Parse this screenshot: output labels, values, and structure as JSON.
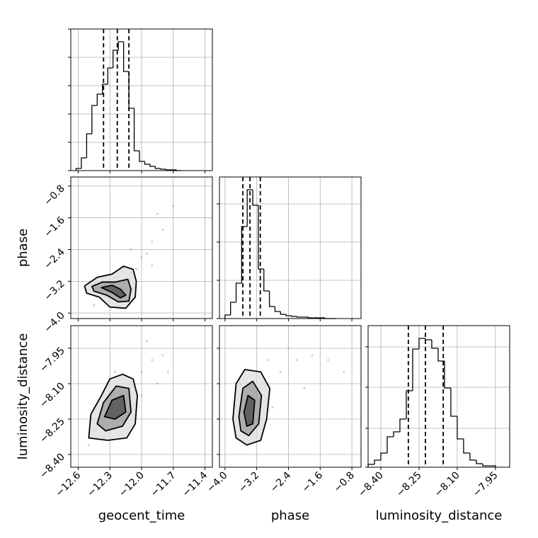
{
  "chart_data": [
    {
      "type": "histogram",
      "color": "#000000",
      "grid": true,
      "bins": [
        -12.62,
        -12.57,
        -12.52,
        -12.47,
        -12.42,
        -12.37,
        -12.32,
        -12.27,
        -12.22,
        -12.17,
        -12.12,
        -12.07,
        -12.02,
        -11.97,
        -11.92,
        -11.87,
        -11.82,
        -11.77,
        -11.72,
        -11.67,
        -11.62
      ],
      "counts": [
        3,
        18,
        52,
        92,
        108,
        122,
        145,
        170,
        182,
        140,
        88,
        28,
        13,
        9,
        6,
        3,
        2,
        1,
        1,
        0
      ],
      "quantiles": [
        -12.36,
        -12.23,
        -12.12
      ],
      "xlim": [
        -12.67,
        -11.33
      ],
      "xticks": [
        -12.6,
        -12.3,
        -12.0,
        -11.7,
        -11.4
      ],
      "ylim": [
        0,
        200
      ],
      "yticks": [
        0,
        40,
        80,
        120,
        160,
        200
      ]
    },
    {
      "type": "scatter",
      "grid": true,
      "ylabel": "phase",
      "xlim": [
        -12.67,
        -11.33
      ],
      "xticks": [
        -12.6,
        -12.3,
        -12.0,
        -11.7,
        -11.4
      ],
      "ylim": [
        -4.14,
        -0.57
      ],
      "yticks": [
        {
          "value": -4.0,
          "label": "−4.0"
        },
        {
          "value": -3.2,
          "label": "−3.2"
        },
        {
          "value": -2.4,
          "label": "−2.4"
        },
        {
          "value": -1.6,
          "label": "−1.6"
        },
        {
          "value": -0.8,
          "label": "−0.8"
        }
      ],
      "samples_x": [
        -12.4,
        -12.3,
        -12.2,
        -12.1,
        -12.0,
        -11.9,
        -11.8,
        -11.85,
        -12.05,
        -12.35,
        -12.5,
        -12.15,
        -11.95,
        -11.7,
        -12.25,
        -12.45,
        -12.1,
        -11.9
      ],
      "samples_y": [
        -3.4,
        -3.3,
        -3.5,
        -3.0,
        -2.6,
        -2.2,
        -1.9,
        -1.5,
        -2.9,
        -3.6,
        -3.5,
        -3.7,
        -2.5,
        -1.3,
        -3.1,
        -3.8,
        -2.4,
        -2.8
      ],
      "contours": [
        {
          "x": [
            -12.54,
            -12.42,
            -12.28,
            -12.17,
            -12.08,
            -12.05,
            -12.06,
            -12.15,
            -12.3,
            -12.4,
            -12.52
          ],
          "y": [
            -3.32,
            -3.1,
            -3.02,
            -2.82,
            -2.9,
            -3.2,
            -3.6,
            -3.88,
            -3.85,
            -3.6,
            -3.5
          ]
        },
        {
          "x": [
            -12.47,
            -12.37,
            -12.25,
            -12.13,
            -12.1,
            -12.12,
            -12.22,
            -12.33,
            -12.45
          ],
          "y": [
            -3.33,
            -3.22,
            -3.22,
            -3.15,
            -3.4,
            -3.7,
            -3.72,
            -3.55,
            -3.45
          ]
        },
        {
          "x": [
            -12.38,
            -12.28,
            -12.2,
            -12.15,
            -12.2,
            -12.28
          ],
          "y": [
            -3.36,
            -3.3,
            -3.4,
            -3.55,
            -3.62,
            -3.48
          ]
        }
      ]
    },
    {
      "type": "histogram",
      "color": "#000000",
      "grid": true,
      "bins": [
        -4.0,
        -3.86,
        -3.72,
        -3.58,
        -3.44,
        -3.3,
        -3.16,
        -3.02,
        -2.88,
        -2.74,
        -2.6,
        -2.46,
        -2.32,
        -2.18,
        -2.04,
        -1.9,
        -1.76,
        -1.62,
        -1.48,
        -1.34,
        -1.2
      ],
      "counts": [
        5,
        23,
        50,
        130,
        182,
        160,
        70,
        39,
        17,
        10,
        6,
        4,
        3,
        2,
        2,
        1,
        1,
        1,
        0,
        0
      ],
      "quantiles": [
        -3.55,
        -3.37,
        -3.11
      ],
      "xlim": [
        -4.14,
        -0.57
      ],
      "xticks": [
        -4.0,
        -3.2,
        -2.4,
        -1.6,
        -0.8
      ],
      "ylim": [
        0,
        200
      ],
      "yticks": [
        0,
        54,
        108,
        162
      ]
    },
    {
      "type": "scatter",
      "grid": true,
      "xlabel": "geocent_time",
      "ylabel": "luminosity_distance",
      "xlim": [
        -12.67,
        -11.33
      ],
      "xticks": [
        {
          "value": -12.6,
          "label": "−12.6"
        },
        {
          "value": -12.3,
          "label": "−12.3"
        },
        {
          "value": -12.0,
          "label": "−12.0"
        },
        {
          "value": -11.7,
          "label": "−11.7"
        },
        {
          "value": -11.4,
          "label": "−11.4"
        }
      ],
      "ylim": [
        -8.454,
        -7.854
      ],
      "yticks": [
        {
          "value": -8.4,
          "label": "−8.40"
        },
        {
          "value": -8.25,
          "label": "−8.25"
        },
        {
          "value": -8.1,
          "label": "−8.10"
        },
        {
          "value": -7.95,
          "label": "−7.95"
        }
      ],
      "samples_x": [
        -12.45,
        -12.3,
        -12.2,
        -12.1,
        -12.0,
        -11.9,
        -11.8,
        -11.75,
        -12.5,
        -12.35,
        -12.0,
        -11.95,
        -12.15,
        -12.4,
        -11.85,
        -12.25
      ],
      "samples_y": [
        -8.3,
        -8.2,
        -8.15,
        -8.1,
        -8.05,
        -8.0,
        -7.98,
        -8.05,
        -8.36,
        -8.33,
        -8.15,
        -7.92,
        -8.25,
        -8.22,
        -8.1,
        -8.05
      ],
      "contours": [
        {
          "x": [
            -12.5,
            -12.48,
            -12.38,
            -12.3,
            -12.18,
            -12.08,
            -12.04,
            -12.06,
            -12.14,
            -12.32
          ],
          "y": [
            -8.33,
            -8.23,
            -8.15,
            -8.08,
            -8.06,
            -8.08,
            -8.15,
            -8.27,
            -8.33,
            -8.34
          ]
        },
        {
          "x": [
            -12.42,
            -12.36,
            -12.24,
            -12.12,
            -12.1,
            -12.18,
            -12.34
          ],
          "y": [
            -8.27,
            -8.18,
            -8.11,
            -8.12,
            -8.22,
            -8.28,
            -8.3
          ]
        },
        {
          "x": [
            -12.35,
            -12.28,
            -12.17,
            -12.15,
            -12.25
          ],
          "y": [
            -8.24,
            -8.17,
            -8.15,
            -8.22,
            -8.25
          ]
        }
      ]
    },
    {
      "type": "scatter",
      "grid": true,
      "xlabel": "phase",
      "xlim": [
        -4.14,
        -0.57
      ],
      "xticks": [
        {
          "value": -4.0,
          "label": "−4.0"
        },
        {
          "value": -3.2,
          "label": "−3.2"
        },
        {
          "value": -2.4,
          "label": "−2.4"
        },
        {
          "value": -1.6,
          "label": "−1.6"
        },
        {
          "value": -0.8,
          "label": "−0.8"
        }
      ],
      "ylim": [
        -8.454,
        -7.854
      ],
      "yticks": [
        -8.4,
        -8.25,
        -8.1,
        -7.95
      ],
      "samples_x": [
        -3.5,
        -3.3,
        -3.0,
        -2.6,
        -2.2,
        -1.8,
        -1.4,
        -3.7,
        -3.4,
        -2.8,
        -2.4,
        -3.1,
        -1.0,
        -3.6,
        -2.0,
        -2.9
      ],
      "samples_y": [
        -8.2,
        -8.15,
        -8.1,
        -8.05,
        -8.0,
        -7.98,
        -8.0,
        -8.3,
        -8.35,
        -8.2,
        -7.95,
        -8.25,
        -8.05,
        -8.1,
        -8.12,
        -8.0
      ],
      "contours": [
        {
          "x": [
            -3.8,
            -3.72,
            -3.5,
            -3.1,
            -2.87,
            -2.95,
            -3.1,
            -3.45,
            -3.72
          ],
          "y": [
            -8.25,
            -8.1,
            -8.04,
            -8.05,
            -8.12,
            -8.25,
            -8.34,
            -8.36,
            -8.33
          ]
        },
        {
          "x": [
            -3.65,
            -3.55,
            -3.3,
            -3.08,
            -3.15,
            -3.4,
            -3.6
          ],
          "y": [
            -8.24,
            -8.12,
            -8.09,
            -8.15,
            -8.27,
            -8.32,
            -8.3
          ]
        },
        {
          "x": [
            -3.52,
            -3.42,
            -3.25,
            -3.3,
            -3.45
          ],
          "y": [
            -8.22,
            -8.15,
            -8.17,
            -8.27,
            -8.28
          ]
        }
      ]
    },
    {
      "type": "histogram",
      "color": "#000000",
      "grid": true,
      "xlabel": "luminosity_distance",
      "bins": [
        -8.45,
        -8.425,
        -8.4,
        -8.375,
        -8.35,
        -8.325,
        -8.3,
        -8.275,
        -8.25,
        -8.225,
        -8.2,
        -8.175,
        -8.15,
        -8.125,
        -8.1,
        -8.075,
        -8.05,
        -8.025,
        -8.0,
        -7.975,
        -7.95
      ],
      "counts": [
        4,
        10,
        20,
        43,
        50,
        68,
        108,
        167,
        182,
        180,
        168,
        150,
        112,
        72,
        40,
        20,
        10,
        5,
        2,
        2
      ],
      "quantiles": [
        -8.292,
        -8.225,
        -8.155
      ],
      "xlim": [
        -8.45,
        -7.894
      ],
      "xticks": [
        {
          "value": -8.4,
          "label": "−8.40"
        },
        {
          "value": -8.25,
          "label": "−8.25"
        },
        {
          "value": -8.1,
          "label": "−8.10"
        },
        {
          "value": -7.95,
          "label": "−7.95"
        }
      ],
      "ylim": [
        0,
        200
      ],
      "yticks": [
        0,
        55,
        113,
        170
      ]
    }
  ]
}
